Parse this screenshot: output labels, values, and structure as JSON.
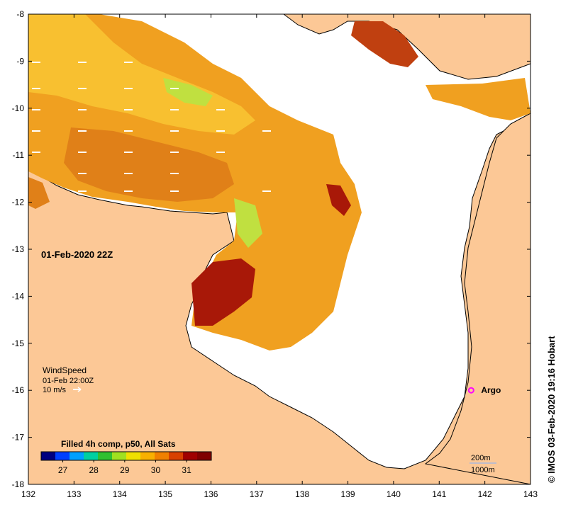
{
  "map": {
    "timestamp_label": "01-Feb-2020 22Z",
    "credit": "© IMOS 03-Feb-2020 19:16 Hobart",
    "x_axis": {
      "range": [
        132,
        143
      ],
      "tick_labels": [
        "132",
        "133",
        "134",
        "135",
        "136",
        "137",
        "138",
        "139",
        "140",
        "141",
        "142",
        "143"
      ]
    },
    "y_axis": {
      "range": [
        -18,
        -8
      ],
      "tick_labels": [
        "-8",
        "-9",
        "-10",
        "-11",
        "-12",
        "-13",
        "-14",
        "-15",
        "-16",
        "-17",
        "-18"
      ]
    },
    "wind_legend": {
      "title": "WindSpeed",
      "time": "01-Feb 22:00Z",
      "scale": "10 m/s"
    },
    "colorbar": {
      "title": "Filled 4h comp, p50, All Sats",
      "tick_labels": [
        "27",
        "28",
        "29",
        "30",
        "31"
      ],
      "range": [
        26.3,
        31.8
      ],
      "colors": [
        "#000080",
        "#0040ff",
        "#00a0ff",
        "#00d0a0",
        "#30c030",
        "#a0e020",
        "#f0e000",
        "#f8b000",
        "#f08000",
        "#d84000",
        "#a00000",
        "#800000"
      ]
    },
    "argo": {
      "label": "Argo",
      "lon": 141.7,
      "lat": -16.0,
      "color": "#ff00ff"
    },
    "depth_legend": {
      "line1": "200m",
      "line2": "1000m"
    },
    "colors": {
      "land": "#fcc896",
      "ocean_nodata": "#ffffff",
      "coast": "#000000"
    }
  }
}
